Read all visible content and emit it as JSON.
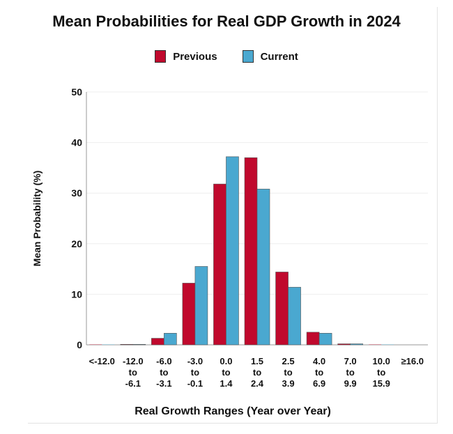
{
  "colors": {
    "previous": "#c0092d",
    "current": "#4aa8d0",
    "axis": "#999999",
    "grid": "#eeeeee",
    "text": "#111111"
  },
  "chart_data": {
    "type": "bar",
    "title": "Mean Probabilities for Real GDP Growth in 2024",
    "xlabel": "Real Growth Ranges (Year over Year)",
    "ylabel": "Mean Probability (%)",
    "ylim": [
      0,
      50
    ],
    "yticks": [
      0,
      10,
      20,
      30,
      40,
      50
    ],
    "grid": true,
    "legend_position": "top",
    "categories": [
      [
        "<-12.0"
      ],
      [
        "-12.0",
        "to",
        "-6.1"
      ],
      [
        "-6.0",
        "to",
        "-3.1"
      ],
      [
        "-3.0",
        "to",
        "-0.1"
      ],
      [
        "0.0",
        "to",
        "1.4"
      ],
      [
        "1.5",
        "to",
        "2.4"
      ],
      [
        "2.5",
        "to",
        "3.9"
      ],
      [
        "4.0",
        "to",
        "6.9"
      ],
      [
        "7.0",
        "to",
        "9.9"
      ],
      [
        "10.0",
        "to",
        "15.9"
      ],
      [
        "≥16.0"
      ]
    ],
    "series": [
      {
        "name": "Previous",
        "values": [
          0.05,
          0.1,
          1.3,
          12.2,
          31.8,
          37.0,
          14.4,
          2.5,
          0.2,
          0.05,
          0.0
        ]
      },
      {
        "name": "Current",
        "values": [
          0.05,
          0.1,
          2.3,
          15.5,
          37.2,
          30.8,
          11.4,
          2.3,
          0.2,
          0.05,
          0.0
        ]
      }
    ]
  }
}
